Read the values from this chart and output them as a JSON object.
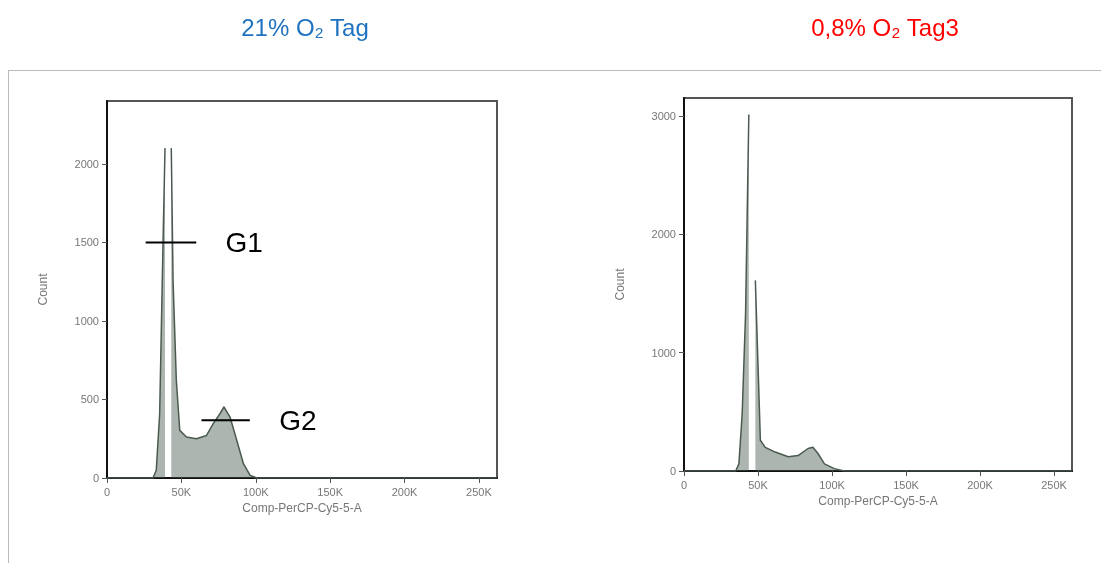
{
  "chart_data": [
    {
      "type": "area",
      "title": "21% O₂ Tag",
      "xlabel": "Comp-PerCP-Cy5-5-A",
      "ylabel": "Count",
      "series": [
        {
          "color": "#4a5a4f",
          "x": [
            0,
            30900,
            33100,
            35400,
            37600,
            39000,
            39900,
            42100,
            43200,
            44400,
            46600,
            48900,
            53400,
            60100,
            66900,
            71400,
            75900,
            78600,
            82700,
            87200,
            91700,
            96200,
            100700,
            262144
          ],
          "values": [
            0,
            0,
            49,
            409,
            1470,
            2100,
            null,
            null,
            2100,
            1258,
            621,
            303,
            261,
            250,
            271,
            346,
            409,
            452,
            388,
            240,
            91,
            17,
            0,
            0
          ]
        },
        {
          "type": "line",
          "color": "#000000",
          "x": [
            26000,
            60000
          ],
          "values": [
            1500,
            1500
          ]
        },
        {
          "type": "line",
          "color": "#000000",
          "x": [
            63500,
            96000
          ],
          "values": [
            367,
            367
          ]
        }
      ],
      "annotations": [
        {
          "text": "G1",
          "x": 60000,
          "y": 1500
        },
        {
          "text": "G2",
          "x": 96000,
          "y": 367
        }
      ],
      "xlim": [
        0,
        262144
      ],
      "xticks": [
        0,
        {
          "value": 50000,
          "label": "50K"
        },
        {
          "value": 100000,
          "label": "100K"
        },
        {
          "value": 150000,
          "label": "150K"
        },
        {
          "value": 200000,
          "label": "200K"
        },
        {
          "value": 250000,
          "label": "250K"
        }
      ],
      "ylim": [
        0,
        2400
      ],
      "yticks": [
        0,
        500,
        1000,
        1500,
        2000
      ],
      "grid": false
    },
    {
      "type": "area",
      "title": "0,8% O₂ Tag3",
      "xlabel": "Comp-PerCP-Cy5-5-A",
      "ylabel": "Count",
      "series": [
        {
          "color": "#4a5a4f",
          "x": [
            0,
            34900,
            37100,
            39300,
            41600,
            43800,
            44900,
            46400,
            48200,
            51600,
            54900,
            61600,
            70400,
            77100,
            83800,
            87100,
            90400,
            94900,
            101600,
            108200,
            262144
          ],
          "values": [
            0,
            0,
            60,
            480,
            1330,
            3010,
            null,
            null,
            1610,
            260,
            200,
            160,
            120,
            130,
            190,
            200,
            150,
            60,
            20,
            0,
            0
          ]
        }
      ],
      "xlim": [
        0,
        262144
      ],
      "xticks": [
        0,
        {
          "value": 50000,
          "label": "50K"
        },
        {
          "value": 100000,
          "label": "100K"
        },
        {
          "value": 150000,
          "label": "150K"
        },
        {
          "value": 200000,
          "label": "200K"
        },
        {
          "value": 250000,
          "label": "250K"
        }
      ],
      "ylim": [
        0,
        3150
      ],
      "yticks": [
        0,
        1000,
        2000,
        3000
      ],
      "grid": false
    }
  ]
}
